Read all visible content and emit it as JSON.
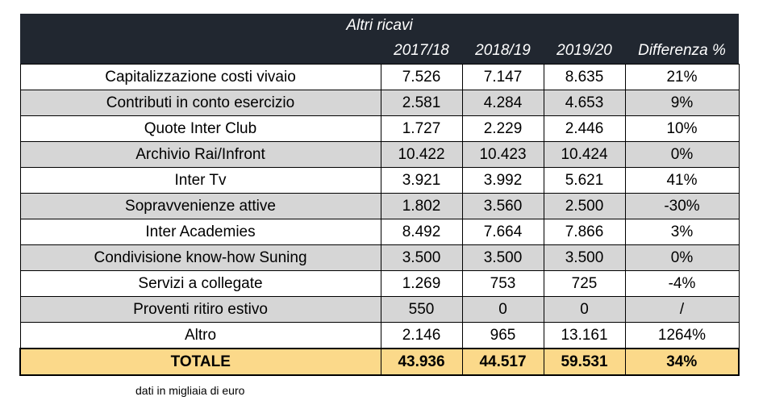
{
  "table": {
    "title": "Altri ricavi",
    "headers": [
      "",
      "2017/18",
      "2018/19",
      "2019/20",
      "Differenza %"
    ],
    "rows": [
      [
        "Capitalizzazione costi vivaio",
        "7.526",
        "7.147",
        "8.635",
        "21%"
      ],
      [
        "Contributi in conto esercizio",
        "2.581",
        "4.284",
        "4.653",
        "9%"
      ],
      [
        "Quote Inter Club",
        "1.727",
        "2.229",
        "2.446",
        "10%"
      ],
      [
        "Archivio Rai/Infront",
        "10.422",
        "10.423",
        "10.424",
        "0%"
      ],
      [
        "Inter Tv",
        "3.921",
        "3.992",
        "5.621",
        "41%"
      ],
      [
        "Sopravvenienze attive",
        "1.802",
        "3.560",
        "2.500",
        "-30%"
      ],
      [
        "Inter Academies",
        "8.492",
        "7.664",
        "7.866",
        "3%"
      ],
      [
        "Condivisione know-how Suning",
        "3.500",
        "3.500",
        "3.500",
        "0%"
      ],
      [
        "Servizi a collegate",
        "1.269",
        "753",
        "725",
        "-4%"
      ],
      [
        "Proventi ritiro estivo",
        "550",
        "0",
        "0",
        "/"
      ],
      [
        "Altro",
        "2.146",
        "965",
        "13.161",
        "1264%"
      ]
    ],
    "total": [
      "TOTALE",
      "43.936",
      "44.517",
      "59.531",
      "34%"
    ]
  },
  "note": "dati in migliaia di euro",
  "colors": {
    "header_bg": "#212730",
    "row_grey": "#d6d6d6",
    "total_bg": "#fbd98a"
  }
}
